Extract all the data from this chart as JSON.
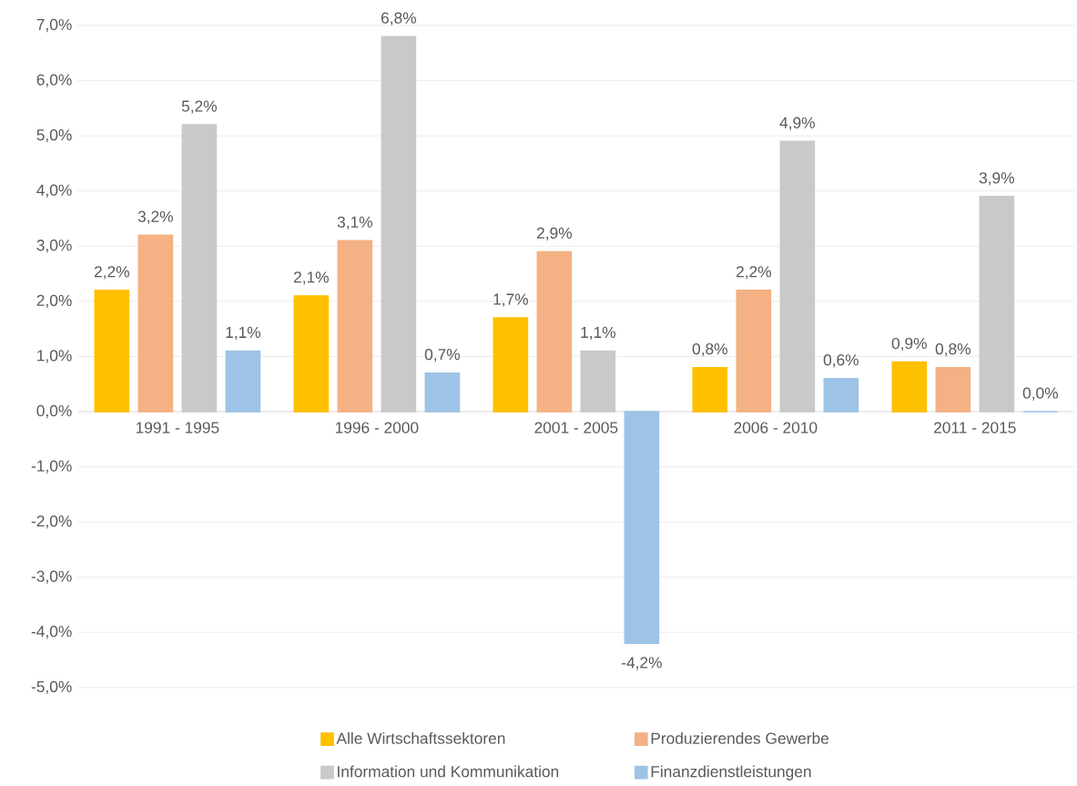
{
  "chart_data": {
    "type": "bar",
    "categories": [
      "1991 - 1995",
      "1996 - 2000",
      "2001 - 2005",
      "2006 - 2010",
      "2011 - 2015"
    ],
    "series": [
      {
        "name": "Alle Wirtschaftssektoren",
        "color": "#ffc000",
        "values": [
          2.2,
          2.1,
          1.7,
          0.8,
          0.9
        ],
        "value_labels": [
          "2,2%",
          "2,1%",
          "1,7%",
          "0,8%",
          "0,9%"
        ]
      },
      {
        "name": "Produzierendes Gewerbe",
        "color": "#f4b183",
        "values": [
          3.2,
          3.1,
          2.9,
          2.2,
          0.8
        ],
        "value_labels": [
          "3,2%",
          "3,1%",
          "2,9%",
          "2,2%",
          "0,8%"
        ]
      },
      {
        "name": "Information und Kommunikation",
        "color": "#c9c9c9",
        "values": [
          5.2,
          6.8,
          1.1,
          4.9,
          3.9
        ],
        "value_labels": [
          "5,2%",
          "6,8%",
          "1,1%",
          "4,9%",
          "3,9%"
        ]
      },
      {
        "name": "Finanzdienstleistungen",
        "color": "#9dc3e6",
        "values": [
          1.1,
          0.7,
          -4.2,
          0.6,
          0.0
        ],
        "value_labels": [
          "1,1%",
          "0,7%",
          "-4,2%",
          "0,6%",
          "0,0%"
        ]
      }
    ],
    "ylim": [
      -5,
      7
    ],
    "yticks": [
      {
        "value": -5,
        "label": "-5,0%"
      },
      {
        "value": -4,
        "label": "-4,0%"
      },
      {
        "value": -3,
        "label": "-3,0%"
      },
      {
        "value": -2,
        "label": "-2,0%"
      },
      {
        "value": -1,
        "label": "-1,0%"
      },
      {
        "value": 0,
        "label": "0,0%"
      },
      {
        "value": 1,
        "label": "1,0%"
      },
      {
        "value": 2,
        "label": "2,0%"
      },
      {
        "value": 3,
        "label": "3,0%"
      },
      {
        "value": 4,
        "label": "4,0%"
      },
      {
        "value": 5,
        "label": "5,0%"
      },
      {
        "value": 6,
        "label": "6,0%"
      },
      {
        "value": 7,
        "label": "7,0%"
      }
    ],
    "grid": "y",
    "legend": "bottom"
  }
}
